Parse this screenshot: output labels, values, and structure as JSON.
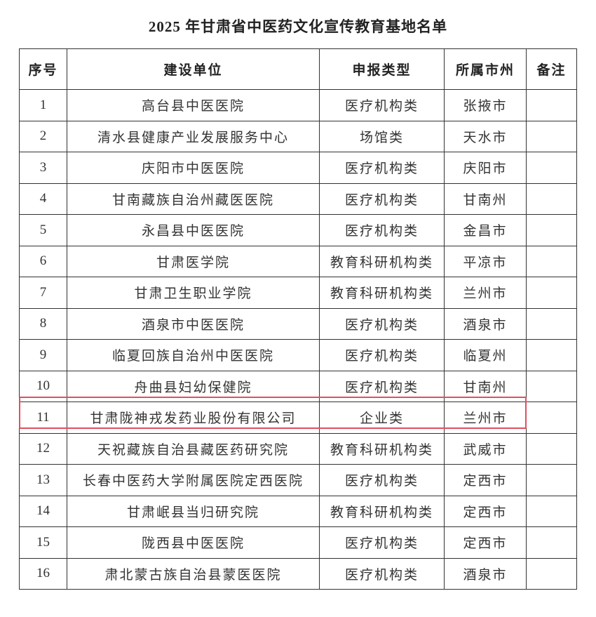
{
  "title": "2025 年甘肃省中医药文化宣传教育基地名单",
  "highlight_color": "#e05060",
  "columns": [
    "序号",
    "建设单位",
    "申报类型",
    "所属市州",
    "备注"
  ],
  "rows": [
    [
      "1",
      "高台县中医医院",
      "医疗机构类",
      "张掖市",
      ""
    ],
    [
      "2",
      "清水县健康产业发展服务中心",
      "场馆类",
      "天水市",
      ""
    ],
    [
      "3",
      "庆阳市中医医院",
      "医疗机构类",
      "庆阳市",
      ""
    ],
    [
      "4",
      "甘南藏族自治州藏医医院",
      "医疗机构类",
      "甘南州",
      ""
    ],
    [
      "5",
      "永昌县中医医院",
      "医疗机构类",
      "金昌市",
      ""
    ],
    [
      "6",
      "甘肃医学院",
      "教育科研机构类",
      "平凉市",
      ""
    ],
    [
      "7",
      "甘肃卫生职业学院",
      "教育科研机构类",
      "兰州市",
      ""
    ],
    [
      "8",
      "酒泉市中医医院",
      "医疗机构类",
      "酒泉市",
      ""
    ],
    [
      "9",
      "临夏回族自治州中医医院",
      "医疗机构类",
      "临夏州",
      ""
    ],
    [
      "10",
      "舟曲县妇幼保健院",
      "医疗机构类",
      "甘南州",
      ""
    ],
    [
      "11",
      "甘肃陇神戎发药业股份有限公司",
      "企业类",
      "兰州市",
      ""
    ],
    [
      "12",
      "天祝藏族自治县藏医药研究院",
      "教育科研机构类",
      "武威市",
      ""
    ],
    [
      "13",
      "长春中医药大学附属医院定西医院",
      "医疗机构类",
      "定西市",
      ""
    ],
    [
      "14",
      "甘肃岷县当归研究院",
      "教育科研机构类",
      "定西市",
      ""
    ],
    [
      "15",
      "陇西县中医医院",
      "医疗机构类",
      "定西市",
      ""
    ],
    [
      "16",
      "肃北蒙古族自治县蒙医医院",
      "医疗机构类",
      "酒泉市",
      ""
    ]
  ],
  "highlighted_row": "11"
}
